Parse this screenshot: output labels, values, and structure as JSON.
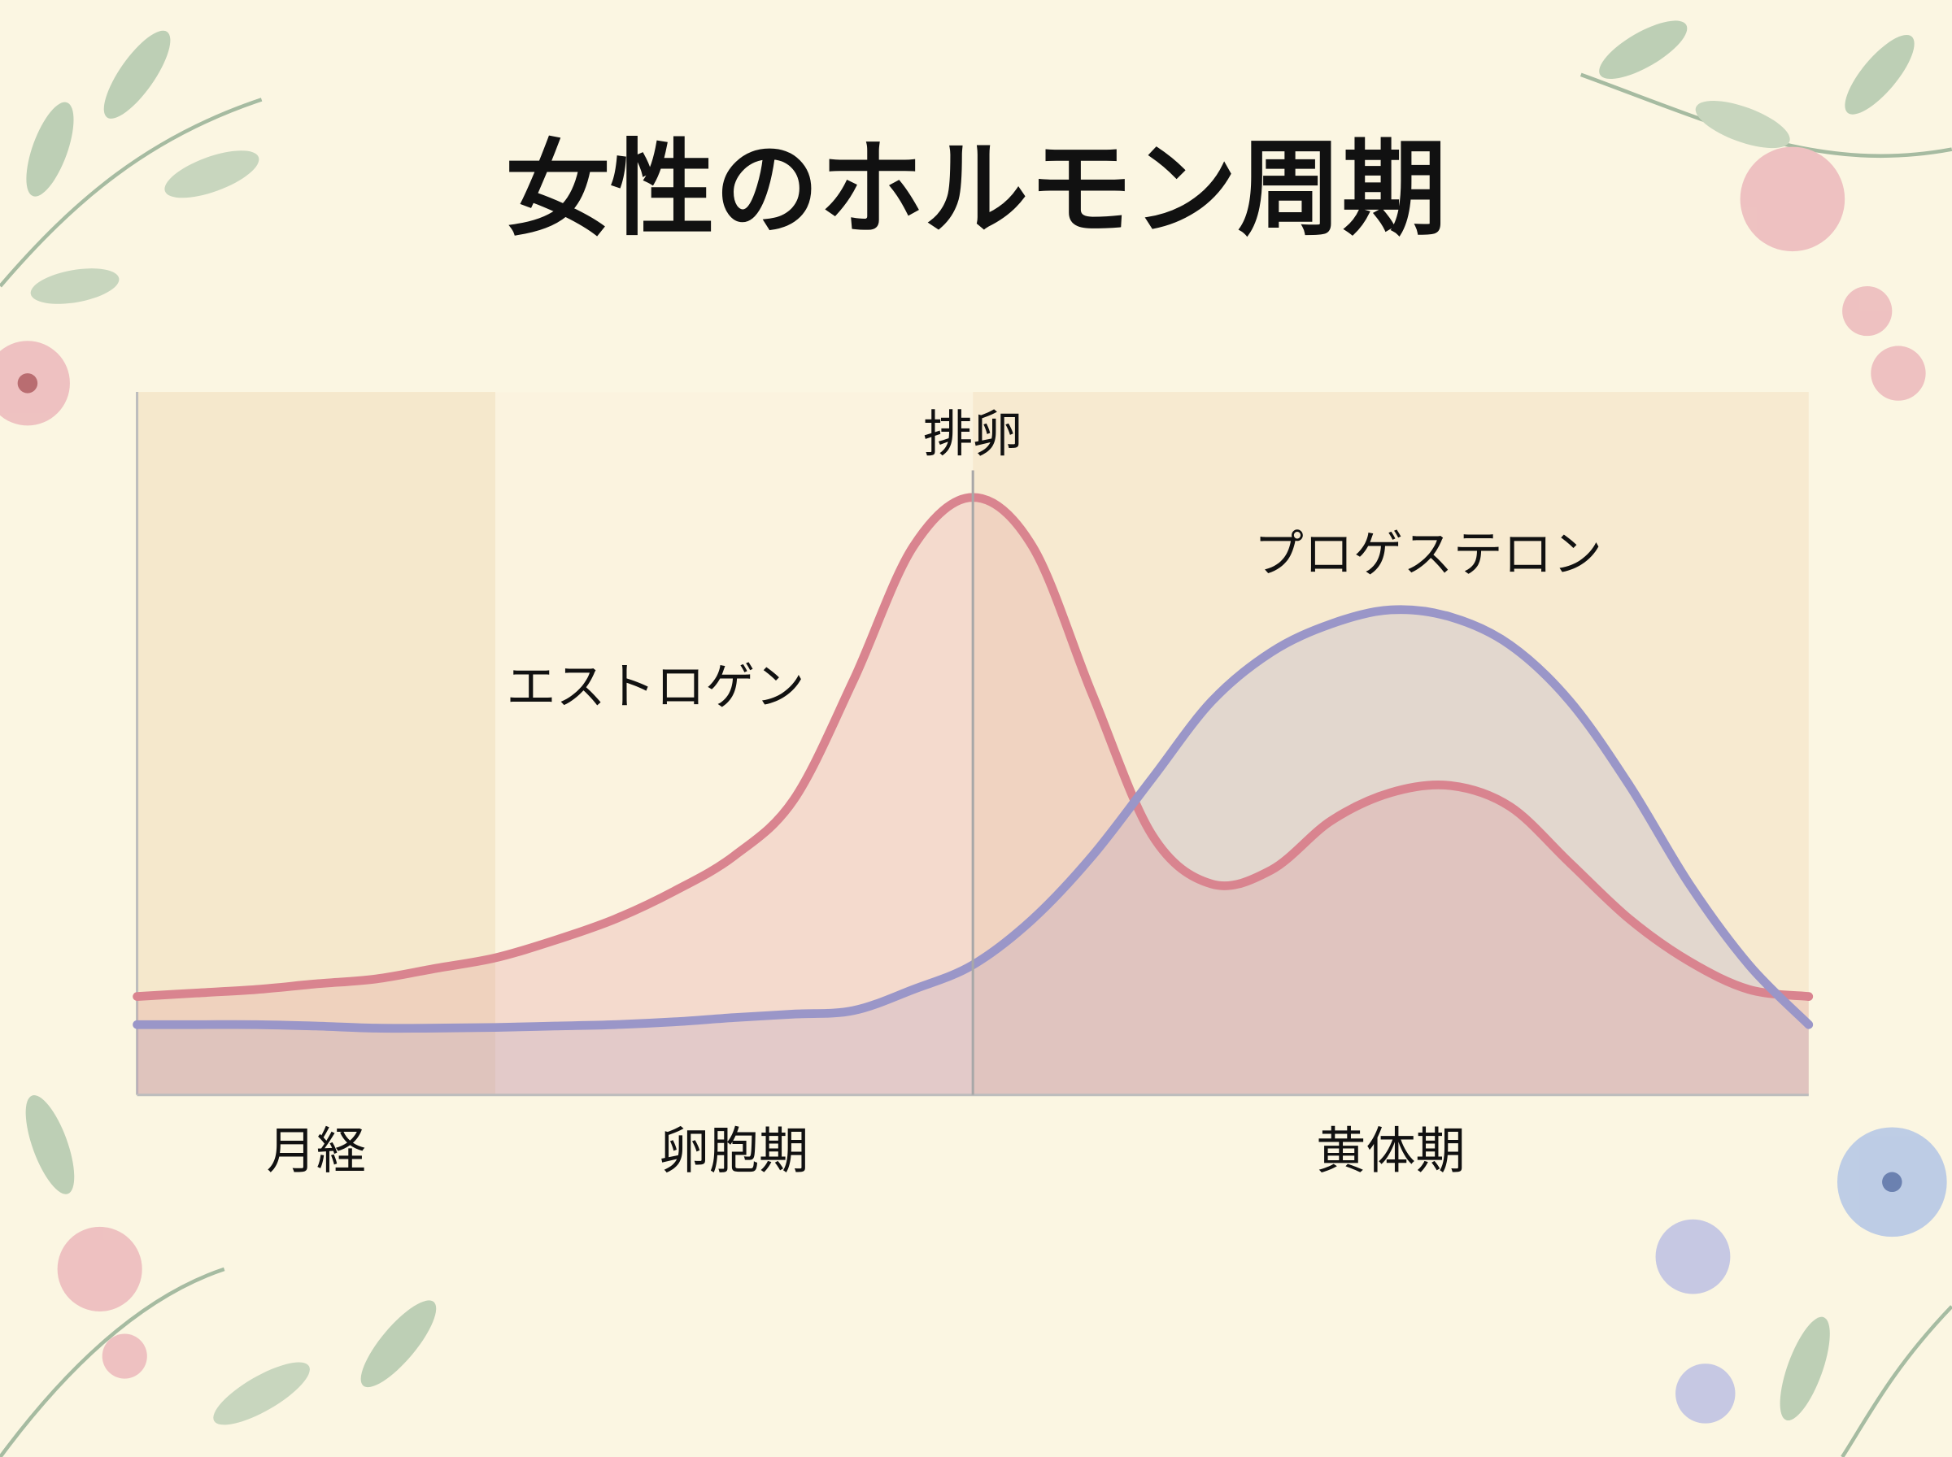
{
  "chart_data": {
    "type": "area-line",
    "title": "女性のホルモン周期",
    "x": [
      0,
      1,
      2,
      3,
      4,
      5,
      6,
      7,
      8,
      9,
      10,
      11,
      12,
      13,
      14,
      15,
      16,
      17,
      18,
      19,
      20,
      21,
      22,
      23,
      24,
      25,
      26,
      27,
      28
    ],
    "xlim": [
      0,
      28
    ],
    "ylim": [
      0,
      100
    ],
    "series": [
      {
        "name": "エストロゲン",
        "color": "#d9848f",
        "values": [
          14,
          14.5,
          15,
          15.8,
          16.5,
          18,
          19.5,
          22,
          25,
          29,
          34,
          42,
          59,
          78,
          85,
          78,
          57,
          37,
          30,
          32,
          39,
          43,
          44,
          41,
          33,
          25,
          19,
          15,
          14
        ]
      },
      {
        "name": "プロゲステロン",
        "color": "#9a96c8",
        "values": [
          10,
          10,
          10,
          9.8,
          9.5,
          9.5,
          9.6,
          9.8,
          10,
          10.4,
          11,
          11.5,
          12,
          15,
          18.5,
          25,
          34,
          45,
          56,
          63,
          67,
          69,
          68,
          64,
          56,
          44,
          30,
          18.5,
          10
        ]
      }
    ],
    "phases": [
      {
        "name": "月経",
        "start": 0,
        "end": 6,
        "color": "#f5e8cc"
      },
      {
        "name": "卵胞期",
        "start": 6,
        "end": 14,
        "color": "#fbf3df"
      },
      {
        "name": "黄体期",
        "start": 14,
        "end": 28,
        "color": "#f7ead0"
      }
    ],
    "annotations": [
      {
        "text": "排卵",
        "x": 14
      }
    ]
  }
}
